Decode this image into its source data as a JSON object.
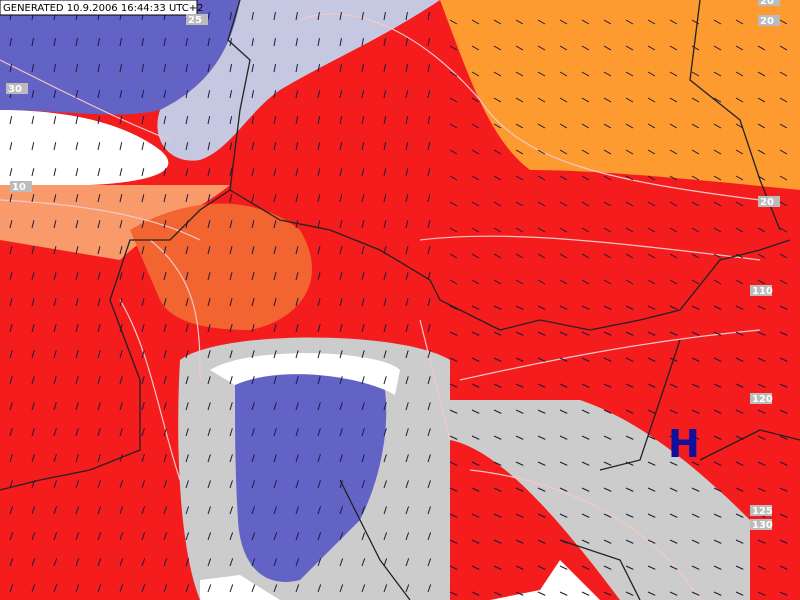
{
  "header": {
    "title": "GENERATED 10.9.2006 16:44:33 UTC+2"
  },
  "pressure_centers": [
    {
      "label": "H"
    }
  ],
  "contour_labels": [
    {
      "label": "25"
    },
    {
      "label": "20"
    },
    {
      "label": "20"
    },
    {
      "label": "30"
    },
    {
      "label": "10"
    },
    {
      "label": "20"
    },
    {
      "label": "110"
    },
    {
      "label": "120"
    },
    {
      "label": "125"
    },
    {
      "label": "130"
    }
  ]
}
